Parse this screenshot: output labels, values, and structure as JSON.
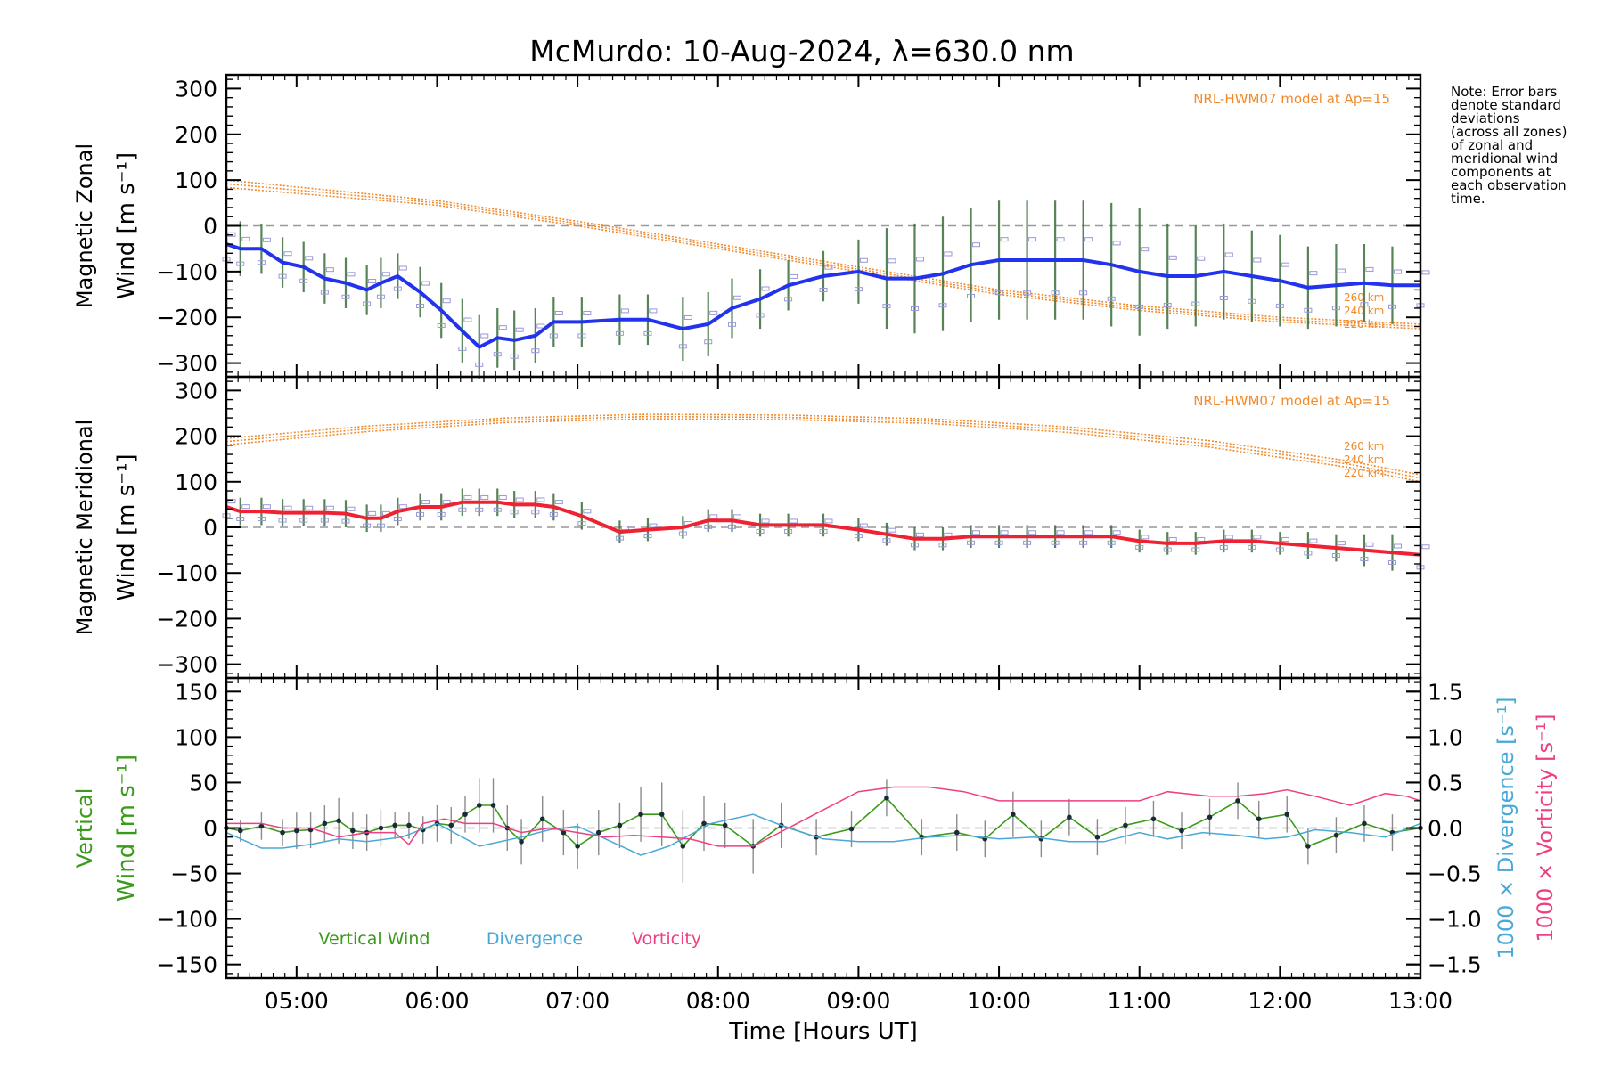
{
  "title": "McMurdo: 10-Aug-2024, λ=630.0 nm",
  "note": "Note: Error bars\ndenote standard\ndeviations\n(across all zones)\nof zonal and\nmeridional wind\ncomponents at\neach observation\ntime.",
  "colors": {
    "zonal": "#2233ee",
    "meridional": "#ee2233",
    "model": "#f08a2c",
    "vertical": "#3a9a1a",
    "divergence": "#48a8d8",
    "vorticity": "#ee3f82",
    "errorbar": "#444444",
    "zone_marker": "#9898d8"
  },
  "chart_data": [
    {
      "type": "line",
      "panel": "zonal",
      "ylabel": [
        "Magnetic Zonal",
        "Wind [m s⁻¹]"
      ],
      "ylim": [
        -330,
        330
      ],
      "yticks": [
        300,
        200,
        100,
        0,
        -100,
        -200,
        -300
      ],
      "xlim": [
        4.5,
        13.0
      ],
      "model_label": "NRL-HWM07 model at Ap=15",
      "model_altitudes": [
        "260 km",
        "240 km",
        "220 km"
      ],
      "model_curves": [
        {
          "x": [
            4.5,
            6,
            7,
            8,
            9,
            10,
            11,
            12,
            13
          ],
          "y": [
            100,
            55,
            10,
            -40,
            -90,
            -140,
            -175,
            -200,
            -215
          ]
        },
        {
          "x": [
            4.5,
            6,
            7,
            8,
            9,
            10,
            11,
            12,
            13
          ],
          "y": [
            92,
            50,
            5,
            -45,
            -95,
            -145,
            -180,
            -205,
            -220
          ]
        },
        {
          "x": [
            4.5,
            6,
            7,
            8,
            9,
            10,
            11,
            12,
            13
          ],
          "y": [
            84,
            45,
            0,
            -50,
            -100,
            -150,
            -185,
            -210,
            -225
          ]
        }
      ],
      "series": [
        {
          "x": [
            4.5,
            4.6,
            4.75,
            4.9,
            5.05,
            5.2,
            5.35,
            5.5,
            5.6,
            5.72,
            5.88,
            6.03,
            6.18,
            6.3,
            6.43,
            6.55,
            6.7,
            6.83,
            7.03,
            7.3,
            7.5,
            7.75,
            7.93,
            8.1,
            8.3,
            8.5,
            8.75,
            9.0,
            9.2,
            9.4,
            9.6,
            9.8,
            10.0,
            10.2,
            10.4,
            10.6,
            10.8,
            11.0,
            11.2,
            11.4,
            11.6,
            11.8,
            12.0,
            12.2,
            12.4,
            12.6,
            12.8,
            13.0
          ],
          "y": [
            -40,
            -50,
            -50,
            -80,
            -90,
            -115,
            -125,
            -140,
            -125,
            -110,
            -145,
            -185,
            -230,
            -265,
            -245,
            -250,
            -240,
            -210,
            -210,
            -205,
            -205,
            -225,
            -215,
            -180,
            -160,
            -130,
            -110,
            -100,
            -115,
            -115,
            -105,
            -85,
            -75,
            -75,
            -75,
            -75,
            -85,
            -100,
            -110,
            -110,
            -100,
            -110,
            -120,
            -135,
            -130,
            -125,
            -130,
            -130
          ],
          "err": [
            60,
            60,
            55,
            55,
            55,
            55,
            55,
            55,
            55,
            50,
            55,
            60,
            70,
            70,
            65,
            65,
            60,
            55,
            55,
            55,
            55,
            70,
            70,
            65,
            65,
            55,
            55,
            70,
            110,
            120,
            125,
            125,
            130,
            130,
            130,
            130,
            135,
            140,
            115,
            110,
            105,
            100,
            100,
            90,
            90,
            85,
            85,
            80
          ]
        }
      ]
    },
    {
      "type": "line",
      "panel": "meridional",
      "ylabel": [
        "Magnetic Meridional",
        "Wind [m s⁻¹]"
      ],
      "ylim": [
        -330,
        330
      ],
      "yticks": [
        300,
        200,
        100,
        0,
        -100,
        -200,
        -300
      ],
      "xlim": [
        4.5,
        13.0
      ],
      "model_label": "NRL-HWM07 model at Ap=15",
      "model_altitudes": [
        "260 km",
        "240 km",
        "220 km"
      ],
      "model_curves": [
        {
          "x": [
            4.5,
            5.5,
            6.5,
            7.5,
            8.5,
            9.5,
            10.5,
            11.5,
            12.5,
            13.0
          ],
          "y": [
            195,
            222,
            240,
            248,
            246,
            238,
            220,
            190,
            145,
            115
          ]
        },
        {
          "x": [
            4.5,
            5.5,
            6.5,
            7.5,
            8.5,
            9.5,
            10.5,
            11.5,
            12.5,
            13.0
          ],
          "y": [
            188,
            216,
            235,
            243,
            241,
            233,
            214,
            183,
            138,
            108
          ]
        },
        {
          "x": [
            4.5,
            5.5,
            6.5,
            7.5,
            8.5,
            9.5,
            10.5,
            11.5,
            12.5,
            13.0
          ],
          "y": [
            181,
            210,
            230,
            238,
            236,
            228,
            208,
            176,
            131,
            100
          ]
        }
      ],
      "series": [
        {
          "x": [
            4.5,
            4.6,
            4.75,
            4.9,
            5.05,
            5.2,
            5.35,
            5.5,
            5.6,
            5.72,
            5.88,
            6.03,
            6.18,
            6.3,
            6.43,
            6.55,
            6.7,
            6.83,
            7.03,
            7.3,
            7.5,
            7.75,
            7.93,
            8.1,
            8.3,
            8.5,
            8.75,
            9.0,
            9.2,
            9.4,
            9.6,
            9.8,
            10.0,
            10.2,
            10.4,
            10.6,
            10.8,
            11.0,
            11.2,
            11.4,
            11.6,
            11.8,
            12.0,
            12.2,
            12.4,
            12.6,
            12.8,
            13.0
          ],
          "y": [
            45,
            35,
            35,
            32,
            32,
            32,
            30,
            20,
            20,
            35,
            45,
            45,
            55,
            55,
            55,
            50,
            50,
            45,
            25,
            -10,
            -5,
            0,
            15,
            15,
            5,
            5,
            5,
            -5,
            -15,
            -25,
            -25,
            -20,
            -20,
            -20,
            -20,
            -20,
            -20,
            -30,
            -35,
            -35,
            -30,
            -30,
            -35,
            -40,
            -45,
            -50,
            -55,
            -60
          ],
          "err": [
            35,
            30,
            30,
            30,
            30,
            30,
            30,
            30,
            30,
            30,
            30,
            30,
            30,
            30,
            30,
            30,
            30,
            30,
            30,
            25,
            25,
            25,
            25,
            25,
            25,
            25,
            25,
            25,
            25,
            25,
            25,
            25,
            25,
            25,
            25,
            25,
            25,
            25,
            25,
            25,
            25,
            25,
            25,
            30,
            30,
            35,
            40,
            50
          ]
        }
      ]
    },
    {
      "type": "line",
      "panel": "vertical",
      "ylabel": [
        "Vertical",
        "Wind [m s⁻¹]"
      ],
      "ylim": [
        -165,
        165
      ],
      "yticks": [
        150,
        100,
        50,
        0,
        -50,
        -100,
        -150
      ],
      "y2label_divergence": "1000 × Divergence [s⁻¹]",
      "y2label_vorticity": "1000 × Vorticity [s⁻¹]",
      "y2lim": [
        -1.65,
        1.65
      ],
      "y2ticks": [
        "1.5",
        "1.0",
        "0.5",
        "0.0",
        "−0.5",
        "−1.0",
        "−1.5"
      ],
      "xlabel": "Time [Hours UT]",
      "xticks": [
        "05:00",
        "06:00",
        "07:00",
        "08:00",
        "09:00",
        "10:00",
        "11:00",
        "12:00",
        "13:00"
      ],
      "legend": [
        "Vertical Wind",
        "Divergence",
        "Vorticity"
      ],
      "series": [
        {
          "name": "Vertical Wind",
          "x": [
            4.5,
            4.6,
            4.75,
            4.9,
            5.0,
            5.1,
            5.2,
            5.3,
            5.4,
            5.5,
            5.6,
            5.7,
            5.8,
            5.9,
            6.0,
            6.1,
            6.2,
            6.3,
            6.4,
            6.5,
            6.6,
            6.75,
            6.9,
            7.0,
            7.15,
            7.3,
            7.45,
            7.6,
            7.75,
            7.9,
            8.05,
            8.25,
            8.45,
            8.7,
            8.95,
            9.2,
            9.45,
            9.7,
            9.9,
            10.1,
            10.3,
            10.5,
            10.7,
            10.9,
            11.1,
            11.3,
            11.5,
            11.7,
            11.85,
            12.05,
            12.2,
            12.4,
            12.6,
            12.8,
            13.0
          ],
          "y": [
            0,
            -3,
            2,
            -5,
            -3,
            -2,
            5,
            8,
            -3,
            -5,
            0,
            3,
            3,
            -2,
            5,
            3,
            15,
            25,
            25,
            0,
            -15,
            10,
            -5,
            -20,
            -5,
            3,
            15,
            15,
            -20,
            5,
            3,
            -20,
            3,
            -10,
            -1,
            33,
            -10,
            -5,
            -12,
            15,
            -12,
            12,
            -10,
            3,
            10,
            -3,
            12,
            30,
            10,
            15,
            -20,
            -8,
            5,
            -5,
            0
          ],
          "err": [
            12,
            12,
            15,
            15,
            20,
            20,
            20,
            25,
            20,
            20,
            20,
            15,
            15,
            15,
            20,
            20,
            20,
            30,
            30,
            25,
            25,
            25,
            25,
            25,
            25,
            25,
            30,
            35,
            40,
            30,
            25,
            30,
            25,
            20,
            20,
            20,
            20,
            20,
            20,
            25,
            20,
            20,
            20,
            20,
            20,
            20,
            20,
            20,
            20,
            20,
            20,
            20,
            20,
            20,
            20
          ]
        },
        {
          "name": "Divergence",
          "axis": "right",
          "x": [
            4.5,
            4.75,
            4.9,
            5.1,
            5.3,
            5.5,
            5.75,
            6.0,
            6.3,
            6.6,
            6.8,
            7.0,
            7.2,
            7.45,
            7.65,
            7.95,
            8.25,
            8.5,
            8.75,
            9.0,
            9.25,
            9.5,
            9.75,
            10.0,
            10.25,
            10.5,
            10.75,
            11.0,
            11.2,
            11.45,
            11.7,
            11.9,
            12.05,
            12.25,
            12.5,
            12.75,
            13.0
          ],
          "y": [
            -0.05,
            -0.22,
            -0.22,
            -0.18,
            -0.12,
            -0.15,
            -0.1,
            0.05,
            -0.2,
            -0.1,
            -0.02,
            0.02,
            -0.12,
            -0.3,
            -0.2,
            0.05,
            0.15,
            0.0,
            -0.12,
            -0.15,
            -0.15,
            -0.1,
            -0.08,
            -0.12,
            -0.1,
            -0.15,
            -0.15,
            -0.05,
            -0.12,
            -0.05,
            -0.08,
            -0.12,
            -0.1,
            -0.02,
            -0.05,
            -0.1,
            0.05
          ]
        },
        {
          "name": "Vorticity",
          "axis": "right",
          "x": [
            4.5,
            4.75,
            4.9,
            5.1,
            5.3,
            5.5,
            5.7,
            5.8,
            5.9,
            6.05,
            6.2,
            6.4,
            6.6,
            6.8,
            7.0,
            7.2,
            7.4,
            7.6,
            7.8,
            8.0,
            8.25,
            8.5,
            8.75,
            9.0,
            9.25,
            9.5,
            9.75,
            10.0,
            10.3,
            10.5,
            10.75,
            11.0,
            11.2,
            11.5,
            11.7,
            11.9,
            12.05,
            12.25,
            12.5,
            12.75,
            12.9,
            13.0
          ],
          "y": [
            0.05,
            0.05,
            0.0,
            0.0,
            -0.1,
            -0.05,
            -0.05,
            -0.18,
            0.05,
            0.1,
            0.05,
            0.05,
            -0.05,
            0.0,
            -0.05,
            -0.1,
            -0.08,
            -0.1,
            -0.12,
            -0.2,
            -0.2,
            0.0,
            0.2,
            0.4,
            0.45,
            0.45,
            0.4,
            0.3,
            0.3,
            0.3,
            0.3,
            0.3,
            0.4,
            0.35,
            0.35,
            0.38,
            0.42,
            0.35,
            0.25,
            0.38,
            0.35,
            0.3
          ]
        }
      ]
    }
  ]
}
